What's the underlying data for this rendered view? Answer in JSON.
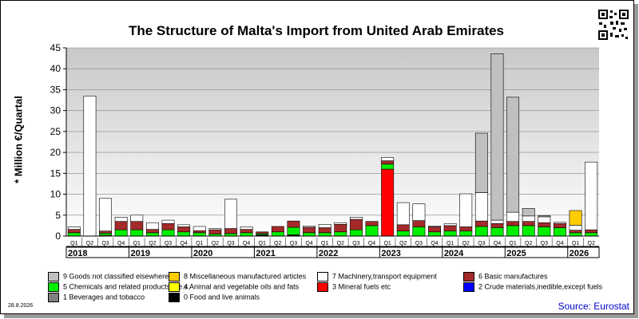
{
  "title": "The Structure of Malta's Import from United Arab Emirates",
  "ylabel": "* Million €/Quartal",
  "date": "28.8.2026",
  "source": "Source: Eurostat",
  "chart_data": {
    "type": "bar",
    "stacked": true,
    "ylim": [
      0,
      45
    ],
    "yticks": [
      0,
      5,
      10,
      15,
      20,
      25,
      30,
      35,
      40,
      45
    ],
    "grid": true,
    "legend_placement": "bottom",
    "categories": [
      {
        "q": "Q1",
        "year": "2018"
      },
      {
        "q": "Q2",
        "year": "2018"
      },
      {
        "q": "Q3",
        "year": "2018"
      },
      {
        "q": "Q4",
        "year": "2018"
      },
      {
        "q": "Q1",
        "year": "2019"
      },
      {
        "q": "Q2",
        "year": "2019"
      },
      {
        "q": "Q3",
        "year": "2019"
      },
      {
        "q": "Q4",
        "year": "2019"
      },
      {
        "q": "Q1",
        "year": "2020"
      },
      {
        "q": "Q2",
        "year": "2020"
      },
      {
        "q": "Q3",
        "year": "2020"
      },
      {
        "q": "Q4",
        "year": "2020"
      },
      {
        "q": "Q1",
        "year": "2021"
      },
      {
        "q": "Q2",
        "year": "2021"
      },
      {
        "q": "Q3",
        "year": "2021"
      },
      {
        "q": "Q4",
        "year": "2021"
      },
      {
        "q": "Q1",
        "year": "2022"
      },
      {
        "q": "Q2",
        "year": "2022"
      },
      {
        "q": "Q3",
        "year": "2022"
      },
      {
        "q": "Q4",
        "year": "2022"
      },
      {
        "q": "Q1",
        "year": "2023"
      },
      {
        "q": "Q2",
        "year": "2023"
      },
      {
        "q": "Q3",
        "year": "2023"
      },
      {
        "q": "Q4",
        "year": "2023"
      },
      {
        "q": "Q1",
        "year": "2024"
      },
      {
        "q": "Q2",
        "year": "2024"
      },
      {
        "q": "Q3",
        "year": "2024"
      },
      {
        "q": "Q4",
        "year": "2024"
      },
      {
        "q": "Q1",
        "year": "2025"
      },
      {
        "q": "Q2",
        "year": "2025"
      },
      {
        "q": "Q3",
        "year": "2025"
      },
      {
        "q": "Q4",
        "year": "2025"
      },
      {
        "q": "Q1",
        "year": "2026"
      },
      {
        "q": "Q2",
        "year": "2026"
      }
    ],
    "years": [
      "2018",
      "2019",
      "2020",
      "2021",
      "2022",
      "2023",
      "2024",
      "2025",
      "2026"
    ],
    "series": [
      {
        "name": "0 Food and live animals",
        "color": "#000000",
        "values": [
          0,
          0,
          0,
          0,
          0,
          0,
          0,
          0,
          0,
          0,
          0,
          0,
          0.3,
          0,
          0.3,
          0,
          0,
          0,
          0,
          0,
          0,
          0,
          0,
          0,
          0,
          0,
          0,
          0,
          0,
          0,
          0,
          0,
          0,
          0
        ]
      },
      {
        "name": "1 Beverages and tobacco",
        "color": "#808080",
        "values": [
          0,
          0,
          0,
          0,
          0,
          0,
          0,
          0,
          0,
          0,
          0,
          0,
          0,
          0,
          0,
          0,
          0,
          0,
          0,
          0,
          0,
          0,
          0,
          0,
          0,
          0,
          0,
          0,
          0,
          0,
          0,
          0,
          0,
          0
        ]
      },
      {
        "name": "2 Crude materials,inedible,except fuels",
        "color": "#0000ff",
        "values": [
          0,
          0,
          0,
          0,
          0,
          0,
          0,
          0,
          0,
          0,
          0,
          0,
          0,
          0,
          0,
          0,
          0,
          0,
          0,
          0,
          0,
          0,
          0,
          0,
          0,
          0,
          0,
          0,
          0,
          0,
          0,
          0,
          0,
          0
        ]
      },
      {
        "name": "3 Mineral fuels etc",
        "color": "#ff0000",
        "values": [
          0,
          0,
          0,
          0,
          0,
          0,
          0,
          0,
          0,
          0,
          0,
          0,
          0,
          0,
          0,
          0,
          0,
          0,
          0,
          0,
          16,
          0,
          0,
          0,
          0,
          0,
          0,
          0,
          0,
          0,
          0,
          0,
          0,
          0
        ]
      },
      {
        "name": "4 Animal and vegetable oils and fats",
        "color": "#ffff00",
        "values": [
          0,
          0,
          0.2,
          0,
          0,
          0,
          0,
          0,
          0,
          0,
          0,
          0,
          0,
          0,
          0,
          0,
          0,
          0,
          0,
          0,
          0,
          0,
          0,
          0,
          0,
          0,
          0,
          0,
          0,
          0,
          0,
          0,
          0,
          0
        ]
      },
      {
        "name": "5 Chemicals and related products,n.e.s.",
        "color": "#00ee00",
        "values": [
          0.8,
          0,
          0.5,
          1.5,
          1.5,
          0.8,
          1.5,
          1.0,
          0.8,
          0.5,
          0.6,
          0.8,
          0.3,
          1.0,
          1.8,
          0.8,
          0.8,
          1.0,
          1.5,
          2.5,
          1.2,
          1.2,
          2.2,
          1.0,
          1.2,
          1.2,
          2.3,
          2.0,
          2.5,
          2.5,
          2.2,
          2.0,
          0.8,
          0.8
        ]
      },
      {
        "name": "6 Basic manufactures",
        "color": "#a52a2a",
        "values": [
          0.8,
          0,
          0.5,
          2.0,
          2.0,
          0.8,
          1.5,
          1.2,
          0.5,
          1.0,
          1.2,
          0.8,
          0.4,
          1.3,
          1.5,
          1.3,
          1.2,
          1.8,
          2.5,
          1.0,
          0.8,
          1.5,
          1.5,
          1.2,
          1.3,
          1.0,
          1.3,
          1.0,
          1.0,
          1.0,
          1.0,
          1.0,
          0.6,
          0.7
        ]
      },
      {
        "name": "7 Machinery,transport equipment",
        "color": "#ffffff",
        "values": [
          0.6,
          33.5,
          7.8,
          1.0,
          1.5,
          1.6,
          0.8,
          0.5,
          1.0,
          0.3,
          7.0,
          0.6,
          0,
          0,
          0,
          0.3,
          0.8,
          0.4,
          0.5,
          0,
          0.8,
          5.3,
          4.0,
          0.2,
          0.5,
          7.9,
          6.8,
          0.8,
          2.2,
          1.3,
          1.4,
          0.3,
          1.2,
          16.2
        ]
      },
      {
        "name": "8 Miscellaneous manufactured articles",
        "color": "#ffcc00",
        "values": [
          0,
          0,
          0,
          0,
          0,
          0,
          0,
          0,
          0,
          0,
          0,
          0,
          0,
          0,
          0,
          0,
          0,
          0,
          0,
          0,
          0,
          0,
          0,
          0,
          0,
          0,
          0,
          0,
          0,
          0,
          0,
          0,
          3.5,
          0
        ]
      },
      {
        "name": "9 Goods not classified elsewhere",
        "color": "#c0c0c0",
        "values": [
          0,
          0,
          0,
          0,
          0,
          0,
          0,
          0,
          0,
          0,
          0,
          0,
          0,
          0,
          0,
          0,
          0,
          0,
          0,
          0,
          0,
          0,
          0,
          0,
          0,
          0,
          14.2,
          39.8,
          27.5,
          1.8,
          0.3,
          0,
          0,
          0
        ]
      }
    ]
  }
}
